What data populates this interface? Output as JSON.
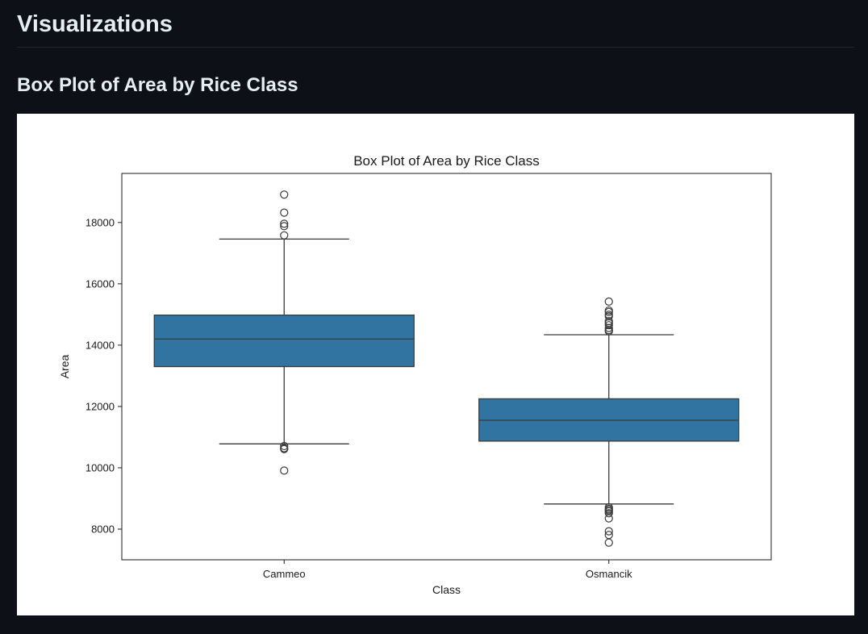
{
  "page": {
    "heading": "Visualizations",
    "section_heading": "Box Plot of Area by Rice Class"
  },
  "colors": {
    "background": "#0d1117",
    "box_fill": "#3274a1",
    "box_edge": "#3a3a3a",
    "plot_bg": "#ffffff"
  },
  "chart_data": {
    "type": "box",
    "title": "Box Plot of Area by Rice Class",
    "xlabel": "Class",
    "ylabel": "Area",
    "ylim": [
      7000,
      19600
    ],
    "yticks": [
      8000,
      10000,
      12000,
      14000,
      16000,
      18000
    ],
    "ytick_labels": [
      "8000",
      "10000",
      "12000",
      "14000",
      "16000",
      "18000"
    ],
    "categories": [
      "Cammeo",
      "Osmancik"
    ],
    "boxes": [
      {
        "name": "Cammeo",
        "q1": 13300,
        "median": 14200,
        "q3": 14980,
        "whisker_low": 10780,
        "whisker_high": 17460,
        "outliers": [
          18910,
          18320,
          17960,
          17880,
          17580,
          10710,
          10640,
          10610,
          9910
        ]
      },
      {
        "name": "Osmancik",
        "q1": 10870,
        "median": 11550,
        "q3": 12250,
        "whisker_low": 8820,
        "whisker_high": 14340,
        "outliers": [
          15420,
          15130,
          15080,
          14990,
          14940,
          14780,
          14720,
          14650,
          14560,
          14490,
          14450,
          8710,
          8660,
          8620,
          8580,
          8520,
          8350,
          7930,
          7810,
          7560
        ]
      }
    ]
  }
}
